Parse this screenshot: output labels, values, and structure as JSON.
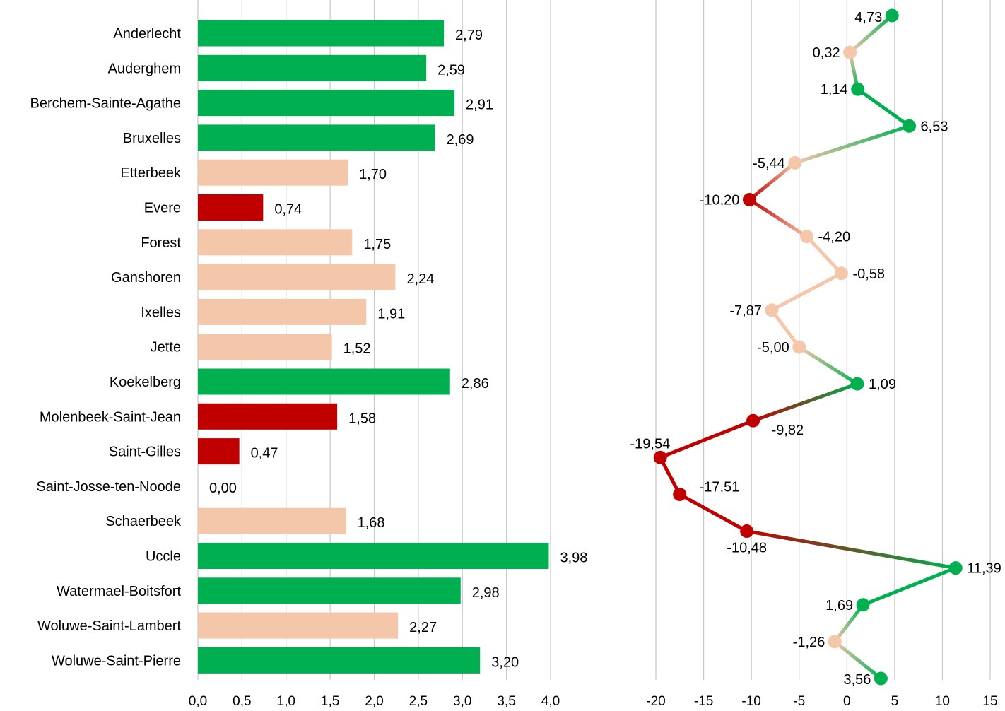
{
  "colors": {
    "good": "#00b050",
    "medium": "#f4c7ab",
    "bad": "#c00000",
    "grid": "#c8c8c8"
  },
  "chart_data": [
    {
      "type": "bar",
      "orientation": "horizontal",
      "categories": [
        "Anderlecht",
        "Auderghem",
        "Berchem-Sainte-Agathe",
        "Bruxelles",
        "Etterbeek",
        "Evere",
        "Forest",
        "Ganshoren",
        "Ixelles",
        "Jette",
        "Koekelberg",
        "Molenbeek-Saint-Jean",
        "Saint-Gilles",
        "Saint-Josse-ten-Noode",
        "Schaerbeek",
        "Uccle",
        "Watermael-Boitsfort",
        "Woluwe-Saint-Lambert",
        "Woluwe-Saint-Pierre"
      ],
      "values": [
        2.79,
        2.59,
        2.91,
        2.69,
        1.7,
        0.74,
        1.75,
        2.24,
        1.91,
        1.52,
        2.86,
        1.58,
        0.47,
        0.0,
        1.68,
        3.98,
        2.98,
        2.27,
        3.2
      ],
      "value_labels": [
        "2,79",
        "2,59",
        "2,91",
        "2,69",
        "1,70",
        "0,74",
        "1,75",
        "2,24",
        "1,91",
        "1,52",
        "2,86",
        "1,58",
        "0,47",
        "0,00",
        "1,68",
        "3,98",
        "2,98",
        "2,27",
        "3,20"
      ],
      "color_classes": [
        "good",
        "good",
        "good",
        "good",
        "medium",
        "bad",
        "medium",
        "medium",
        "medium",
        "medium",
        "good",
        "bad",
        "bad",
        "bad",
        "medium",
        "good",
        "good",
        "medium",
        "good"
      ],
      "xlim": [
        0,
        4.0
      ],
      "x_ticks": [
        0,
        0.5,
        1.0,
        1.5,
        2.0,
        2.5,
        3.0,
        3.5,
        4.0
      ],
      "x_tick_labels": [
        "0,0",
        "0,5",
        "1,0",
        "1,5",
        "2,0",
        "2,5",
        "3,0",
        "3,5",
        "4,0"
      ],
      "grid": true
    },
    {
      "type": "line",
      "orientation": "vertical",
      "values": [
        4.73,
        0.32,
        1.14,
        6.53,
        -5.44,
        -10.2,
        -4.2,
        -0.58,
        -7.87,
        -5.0,
        1.09,
        -9.82,
        -19.54,
        -17.51,
        -10.48,
        11.39,
        1.69,
        -1.26,
        3.56
      ],
      "value_labels": [
        "4,73",
        "0,32",
        "1,14",
        "6,53",
        "-5,44",
        "-10,20",
        "-4,20",
        "-0,58",
        "-7,87",
        "-5,00",
        "1,09",
        "-9,82",
        "-19,54",
        "-17,51",
        "-10,48",
        "11,39",
        "1,69",
        "-1,26",
        "3,56"
      ],
      "color_classes": [
        "good",
        "medium",
        "good",
        "good",
        "medium",
        "bad",
        "medium",
        "medium",
        "medium",
        "medium",
        "good",
        "bad",
        "bad",
        "bad",
        "bad",
        "good",
        "good",
        "medium",
        "good"
      ],
      "xlim": [
        -20,
        15
      ],
      "x_ticks": [
        -20,
        -15,
        -10,
        -5,
        0,
        5,
        10,
        15
      ],
      "x_tick_labels": [
        "-20",
        "-15",
        "-10",
        "-5",
        "0",
        "5",
        "10",
        "15"
      ],
      "grid": true
    }
  ]
}
